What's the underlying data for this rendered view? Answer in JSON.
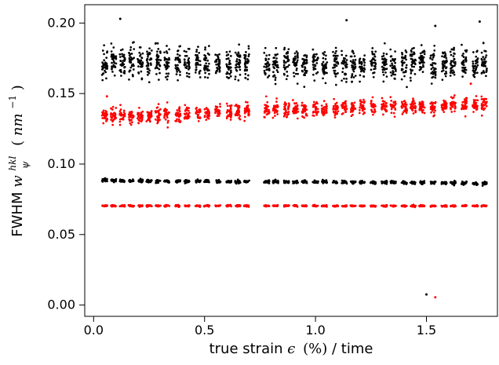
{
  "chart_data": {
    "type": "scatter",
    "title": "",
    "xlabel": {
      "prefix": "true strain ",
      "symbol": "ϵ",
      "unit": "(%)",
      "suffix": " / time"
    },
    "ylabel": {
      "prefix": "FWHM ",
      "symbol": "w",
      "superscript": "hkl",
      "subscript": "ψ",
      "unit_left": "(",
      "unit_main": "nm",
      "unit_exp": "−1",
      "unit_right": ")"
    },
    "xlim": [
      -0.04,
      1.82
    ],
    "ylim": [
      -0.008,
      0.213
    ],
    "xticks": [
      0.0,
      0.5,
      1.0,
      1.5
    ],
    "xtick_labels": [
      "0.0",
      "0.5",
      "1.0",
      "1.5"
    ],
    "yticks": [
      0.0,
      0.05,
      0.1,
      0.15,
      0.2
    ],
    "ytick_labels": [
      "0.00",
      "0.05",
      "0.10",
      "0.15",
      "0.20"
    ],
    "grid": false,
    "legend": "none",
    "cluster_x": [
      0.05,
      0.09,
      0.13,
      0.17,
      0.21,
      0.25,
      0.29,
      0.33,
      0.38,
      0.42,
      0.47,
      0.51,
      0.56,
      0.61,
      0.65,
      0.69,
      0.78,
      0.82,
      0.87,
      0.91,
      0.95,
      1.0,
      1.04,
      1.09,
      1.13,
      1.17,
      1.21,
      1.26,
      1.31,
      1.35,
      1.4,
      1.44,
      1.48,
      1.53,
      1.58,
      1.62,
      1.67,
      1.72,
      1.76
    ],
    "series": [
      {
        "color": "#000000",
        "pattern": "upper scattered band",
        "mean_values": [
          0.173,
          0.173,
          0.172,
          0.172,
          0.172,
          0.172,
          0.171,
          0.171,
          0.172,
          0.172,
          0.172,
          0.171,
          0.171,
          0.171,
          0.171,
          0.172,
          0.171,
          0.171,
          0.171,
          0.171,
          0.171,
          0.17,
          0.17,
          0.171,
          0.171,
          0.171,
          0.171,
          0.171,
          0.171,
          0.171,
          0.171,
          0.172,
          0.173,
          0.171,
          0.171,
          0.172,
          0.172,
          0.171,
          0.171
        ],
        "spread": 0.012,
        "points_per_cluster": 34,
        "outliers": [
          [
            0.12,
            0.203
          ],
          [
            1.14,
            0.202
          ],
          [
            1.54,
            0.198
          ],
          [
            1.74,
            0.201
          ]
        ]
      },
      {
        "color": "#ff0000",
        "pattern": "upper red band",
        "mean_values": [
          0.134,
          0.134,
          0.134,
          0.134,
          0.134,
          0.134,
          0.135,
          0.135,
          0.135,
          0.136,
          0.136,
          0.136,
          0.137,
          0.137,
          0.137,
          0.138,
          0.139,
          0.139,
          0.139,
          0.139,
          0.139,
          0.139,
          0.139,
          0.139,
          0.14,
          0.14,
          0.14,
          0.141,
          0.141,
          0.141,
          0.141,
          0.141,
          0.141,
          0.141,
          0.141,
          0.142,
          0.142,
          0.142,
          0.143
        ],
        "spread": 0.006,
        "points_per_cluster": 30,
        "outliers": [
          [
            0.06,
            0.148
          ],
          [
            1.7,
            0.157
          ]
        ]
      },
      {
        "color": "#000000",
        "pattern": "lower black band",
        "mean_values": [
          0.0885,
          0.0883,
          0.0881,
          0.088,
          0.088,
          0.088,
          0.0879,
          0.0878,
          0.0878,
          0.0877,
          0.0877,
          0.0876,
          0.0876,
          0.0875,
          0.0875,
          0.0875,
          0.0874,
          0.0874,
          0.0873,
          0.0873,
          0.0873,
          0.0872,
          0.0872,
          0.0872,
          0.0871,
          0.0871,
          0.0871,
          0.087,
          0.087,
          0.087,
          0.0869,
          0.0868,
          0.0868,
          0.0867,
          0.0867,
          0.0866,
          0.0865,
          0.0864,
          0.0863
        ],
        "spread": 0.0012,
        "points_per_cluster": 24,
        "outliers": [
          [
            1.5,
            0.0075
          ]
        ]
      },
      {
        "color": "#ff0000",
        "pattern": "lower red band",
        "mean_values": [
          0.0705,
          0.0705,
          0.0704,
          0.0704,
          0.0704,
          0.0704,
          0.0704,
          0.0704,
          0.0704,
          0.0704,
          0.0704,
          0.0704,
          0.0704,
          0.0704,
          0.0704,
          0.0704,
          0.0704,
          0.0704,
          0.0704,
          0.0704,
          0.0704,
          0.0704,
          0.0704,
          0.0703,
          0.0703,
          0.0703,
          0.0703,
          0.0703,
          0.0703,
          0.0703,
          0.0703,
          0.0703,
          0.0703,
          0.0703,
          0.0703,
          0.0703,
          0.0703,
          0.0703,
          0.0703
        ],
        "spread": 0.0006,
        "points_per_cluster": 22,
        "outliers": [
          [
            1.54,
            0.0055
          ]
        ]
      }
    ]
  }
}
